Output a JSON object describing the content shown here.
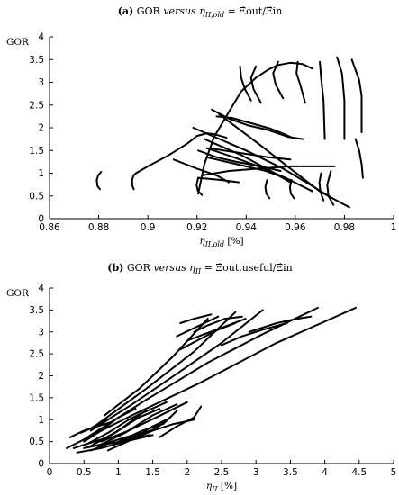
{
  "chart_data": [
    {
      "type": "line",
      "panel_label": "(a)",
      "title": "GOR versus ηII,old = Ξ̇out/Ξ̇in",
      "title_parts": {
        "y_var": "GOR",
        "versus": "versus",
        "x_sym": "η",
        "x_sub": "II,old",
        "rhs": "= Ξ̇out/Ξ̇in"
      },
      "ylabel": "GOR",
      "xlabel": "ηII,old [%]",
      "xlabel_parts": {
        "sym": "η",
        "sub": "II,old",
        "unit": "[%]"
      },
      "xlim": [
        0.86,
        1.0
      ],
      "ylim": [
        0,
        4
      ],
      "xticks": [
        "0.86",
        "0.88",
        "0.9",
        "0.92",
        "0.94",
        "0.96",
        "0.98",
        "1"
      ],
      "yticks": [
        "0",
        "0.5",
        "1",
        "1.5",
        "2",
        "2.5",
        "3",
        "3.5",
        "4"
      ],
      "grid": false,
      "legend": "none",
      "series": [
        {
          "x": [
            0.8805,
            0.8795,
            0.8792,
            0.8798,
            0.881
          ],
          "y": [
            0.65,
            0.72,
            0.85,
            0.95,
            1.03
          ]
        },
        {
          "x": [
            0.8943,
            0.8937,
            0.8936,
            0.8942,
            0.8952
          ],
          "y": [
            0.65,
            0.72,
            0.85,
            0.95,
            1.0
          ]
        },
        {
          "x": [
            0.8952,
            0.9,
            0.908,
            0.916,
            0.92,
            0.924,
            0.927,
            0.932
          ],
          "y": [
            1.0,
            1.15,
            1.38,
            1.65,
            1.82,
            1.88,
            1.86,
            1.78
          ]
        },
        {
          "x": [
            0.9205,
            0.923,
            0.927,
            0.933,
            0.938,
            0.944,
            0.949,
            0.953,
            0.958,
            0.963,
            0.967
          ],
          "y": [
            0.55,
            1.2,
            1.8,
            2.35,
            2.8,
            3.1,
            3.28,
            3.38,
            3.43,
            3.4,
            3.3
          ]
        },
        {
          "x": [
            0.926,
            0.933,
            0.941,
            0.949,
            0.957,
            0.963
          ],
          "y": [
            2.4,
            2.2,
            2.05,
            1.95,
            1.8,
            1.75
          ]
        },
        {
          "x": [
            0.928,
            0.934,
            0.942,
            0.95,
            0.956,
            0.958
          ],
          "y": [
            2.25,
            2.22,
            2.1,
            1.98,
            1.85,
            1.8
          ]
        },
        {
          "x": [
            0.9185,
            0.94,
            0.955,
            0.966,
            0.975
          ],
          "y": [
            2.0,
            1.5,
            1.1,
            0.75,
            0.45
          ]
        },
        {
          "x": [
            0.929,
            0.945,
            0.958,
            0.97,
            0.982
          ],
          "y": [
            2.3,
            1.65,
            1.1,
            0.6,
            0.25
          ]
        },
        {
          "x": [
            0.923,
            0.938,
            0.95,
            0.958
          ],
          "y": [
            1.75,
            1.4,
            1.05,
            0.8
          ]
        },
        {
          "x": [
            0.924,
            0.935,
            0.945,
            0.956,
            0.967
          ],
          "y": [
            1.55,
            1.35,
            1.15,
            0.9,
            0.6
          ]
        },
        {
          "x": [
            0.924,
            0.936,
            0.948,
            0.958
          ],
          "y": [
            1.35,
            1.2,
            1.05,
            0.85
          ]
        },
        {
          "x": [
            0.925,
            0.937,
            0.949,
            0.958
          ],
          "y": [
            1.55,
            1.45,
            1.35,
            1.3
          ]
        },
        {
          "x": [
            0.922,
            0.933,
            0.945,
            0.958,
            0.968,
            0.976
          ],
          "y": [
            0.95,
            1.05,
            1.1,
            1.15,
            1.15,
            1.15
          ]
        },
        {
          "x": [
            0.9205,
            0.93,
            0.937
          ],
          "y": [
            0.9,
            0.85,
            0.8
          ]
        },
        {
          "x": [
            0.9205,
            0.928,
            0.936,
            0.946,
            0.954
          ],
          "y": [
            1.5,
            1.35,
            1.25,
            1.15,
            1.05
          ]
        },
        {
          "x": [
            0.9105,
            0.92,
            0.928,
            0.933
          ],
          "y": [
            1.3,
            1.1,
            0.95,
            0.8
          ]
        },
        {
          "x": [
            0.9205,
            0.9198,
            0.9203,
            0.922
          ],
          "y": [
            0.9,
            0.75,
            0.62,
            0.52
          ]
        },
        {
          "x": [
            0.9485,
            0.9478,
            0.9482,
            0.9495
          ],
          "y": [
            0.85,
            0.7,
            0.55,
            0.45
          ]
        },
        {
          "x": [
            0.9585,
            0.9578,
            0.9582,
            0.9595
          ],
          "y": [
            0.85,
            0.7,
            0.55,
            0.45
          ]
        },
        {
          "x": [
            0.9705,
            0.9698,
            0.9702,
            0.9715
          ],
          "y": [
            1.0,
            0.8,
            0.6,
            0.4
          ]
        },
        {
          "x": [
            0.944,
            0.942,
            0.943,
            0.946
          ],
          "y": [
            3.35,
            3.1,
            2.85,
            2.55
          ]
        },
        {
          "x": [
            0.953,
            0.951,
            0.952,
            0.955
          ],
          "y": [
            3.45,
            3.2,
            2.95,
            2.65
          ]
        },
        {
          "x": [
            0.961,
            0.9605,
            0.962,
            0.964
          ],
          "y": [
            3.45,
            3.2,
            2.95,
            2.55
          ]
        },
        {
          "x": [
            0.97,
            0.9705,
            0.9715,
            0.972
          ],
          "y": [
            3.45,
            3.1,
            2.6,
            1.75
          ]
        },
        {
          "x": [
            0.977,
            0.979,
            0.98,
            0.98
          ],
          "y": [
            3.55,
            3.2,
            2.6,
            1.75
          ]
        },
        {
          "x": [
            0.983,
            0.986,
            0.987,
            0.987
          ],
          "y": [
            3.5,
            3.05,
            2.7,
            1.9
          ]
        },
        {
          "x": [
            0.9745,
            0.973,
            0.9735,
            0.9755
          ],
          "y": [
            1.05,
            0.75,
            0.5,
            0.3
          ]
        },
        {
          "x": [
            0.9845,
            0.986,
            0.987,
            0.9875
          ],
          "y": [
            1.75,
            1.5,
            1.2,
            0.9
          ]
        },
        {
          "x": [
            0.9375,
            0.938,
            0.9395,
            0.942
          ],
          "y": [
            3.35,
            3.1,
            2.85,
            2.6
          ]
        }
      ]
    },
    {
      "type": "line",
      "panel_label": "(b)",
      "title": "GOR versus ηII = Ξ̇out,useful/Ξ̇in",
      "title_parts": {
        "y_var": "GOR",
        "versus": "versus",
        "x_sym": "η",
        "x_sub": "II",
        "rhs": "= Ξ̇out,useful/Ξ̇in"
      },
      "ylabel": "GOR",
      "xlabel": "ηII [%]",
      "xlabel_parts": {
        "sym": "η",
        "sub": "II",
        "unit": "[%]"
      },
      "xlim": [
        0,
        5
      ],
      "ylim": [
        0,
        4
      ],
      "xticks": [
        "0",
        "0.5",
        "1",
        "1.5",
        "2",
        "2.5",
        "3",
        "3.5",
        "4",
        "4.5",
        "5"
      ],
      "yticks": [
        "0",
        "0.5",
        "1",
        "1.5",
        "2",
        "2.5",
        "3",
        "3.5",
        "4"
      ],
      "grid": false,
      "legend": "none",
      "series": [
        {
          "x": [
            0.25,
            1.2,
            2.2,
            3.3,
            4.45
          ],
          "y": [
            0.35,
            1.1,
            1.85,
            2.75,
            3.55
          ]
        },
        {
          "x": [
            0.5,
            1.4,
            2.3,
            3.1,
            3.9
          ],
          "y": [
            0.55,
            1.45,
            2.3,
            2.95,
            3.55
          ]
        },
        {
          "x": [
            0.6,
            1.2,
            1.9,
            2.5,
            3.1
          ],
          "y": [
            0.75,
            1.35,
            2.1,
            2.75,
            3.5
          ]
        },
        {
          "x": [
            0.7,
            1.4,
            2.1,
            2.7
          ],
          "y": [
            0.9,
            1.7,
            2.55,
            3.45
          ]
        },
        {
          "x": [
            0.8,
            1.3,
            1.8,
            2.3
          ],
          "y": [
            1.1,
            1.7,
            2.45,
            3.3
          ]
        },
        {
          "x": [
            1.9,
            2.2,
            2.45,
            2.7
          ],
          "y": [
            2.6,
            2.85,
            3.05,
            3.2
          ]
        },
        {
          "x": [
            1.85,
            2.05,
            2.25,
            2.45
          ],
          "y": [
            2.9,
            3.05,
            3.2,
            3.35
          ]
        },
        {
          "x": [
            1.9,
            2.1,
            2.35
          ],
          "y": [
            3.2,
            3.3,
            3.4
          ]
        },
        {
          "x": [
            2.1,
            2.3,
            2.55,
            2.8
          ],
          "y": [
            3.0,
            3.15,
            3.3,
            3.35
          ]
        },
        {
          "x": [
            2.0,
            2.25,
            2.6,
            2.85
          ],
          "y": [
            2.8,
            2.95,
            3.15,
            3.3
          ]
        },
        {
          "x": [
            2.5,
            2.8,
            3.1,
            3.45
          ],
          "y": [
            2.7,
            2.9,
            3.05,
            3.2
          ]
        },
        {
          "x": [
            2.9,
            3.3,
            3.6,
            3.8
          ],
          "y": [
            3.0,
            3.2,
            3.3,
            3.35
          ]
        },
        {
          "x": [
            0.45,
            0.6,
            0.75,
            0.85
          ],
          "y": [
            0.7,
            0.8,
            0.95,
            1.0
          ]
        },
        {
          "x": [
            0.5,
            0.75,
            1.0,
            1.25
          ],
          "y": [
            0.5,
            0.75,
            1.05,
            1.25
          ]
        },
        {
          "x": [
            0.55,
            0.85,
            1.15,
            1.4
          ],
          "y": [
            0.45,
            0.7,
            1.0,
            1.2
          ]
        },
        {
          "x": [
            0.6,
            0.95,
            1.3,
            1.6
          ],
          "y": [
            0.4,
            0.7,
            1.05,
            1.25
          ]
        },
        {
          "x": [
            0.65,
            1.0,
            1.35,
            1.7
          ],
          "y": [
            0.45,
            0.75,
            1.15,
            1.4
          ]
        },
        {
          "x": [
            0.7,
            1.1,
            1.5,
            1.85
          ],
          "y": [
            0.4,
            0.7,
            1.1,
            1.35
          ]
        },
        {
          "x": [
            0.75,
            1.15,
            1.55,
            2.0
          ],
          "y": [
            0.5,
            0.75,
            1.05,
            1.4
          ]
        },
        {
          "x": [
            0.4,
            0.75,
            1.1,
            1.5
          ],
          "y": [
            0.25,
            0.35,
            0.5,
            0.65
          ]
        },
        {
          "x": [
            0.5,
            0.8,
            1.1,
            1.35
          ],
          "y": [
            0.35,
            0.45,
            0.6,
            0.7
          ]
        },
        {
          "x": [
            0.6,
            0.85,
            1.2,
            1.45
          ],
          "y": [
            0.3,
            0.45,
            0.55,
            0.65
          ]
        },
        {
          "x": [
            0.85,
            1.2,
            1.5,
            1.7
          ],
          "y": [
            0.3,
            0.55,
            0.85,
            1.0
          ]
        },
        {
          "x": [
            0.95,
            1.3,
            1.55,
            1.75
          ],
          "y": [
            0.45,
            0.65,
            0.8,
            1.05
          ]
        },
        {
          "x": [
            1.0,
            1.35,
            1.65,
            1.85
          ],
          "y": [
            0.5,
            0.75,
            0.9,
            1.2
          ]
        },
        {
          "x": [
            1.2,
            1.5,
            1.8,
            2.1
          ],
          "y": [
            0.55,
            0.75,
            0.9,
            1.0
          ]
        },
        {
          "x": [
            1.6,
            1.85,
            2.1,
            2.2
          ],
          "y": [
            0.6,
            0.85,
            1.05,
            1.3
          ]
        },
        {
          "x": [
            0.3,
            0.5,
            0.7,
            0.9
          ],
          "y": [
            0.6,
            0.75,
            0.85,
            0.95
          ]
        },
        {
          "x": [
            0.35,
            0.55,
            0.85,
            1.0
          ],
          "y": [
            0.35,
            0.45,
            0.6,
            0.75
          ]
        }
      ]
    }
  ]
}
